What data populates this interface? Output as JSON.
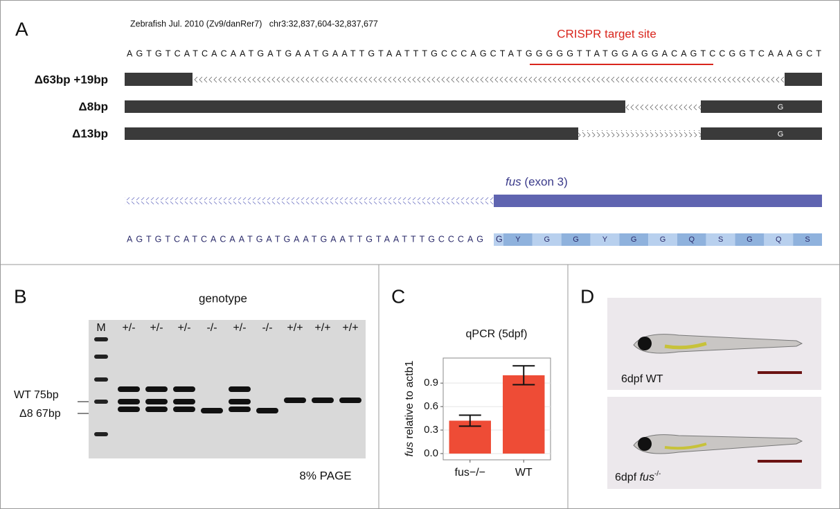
{
  "panel_a": {
    "label": "A",
    "genome": "Zebrafish Jul. 2010 (Zv9/danRer7)   chr3:32,837,604-32,837,677",
    "sequence": "AGTGTCATCACAATGATGAATGAATTGTAATTTGCCCAGCTATGGGGGTTATGGAGGACAGTCCGGTCAAAGCT",
    "target_label": "CRISPR target site",
    "alleles": [
      {
        "label": "Δ63bp +19bp"
      },
      {
        "label": "Δ8bp",
        "base": "G"
      },
      {
        "label": "Δ13bp",
        "base": "G"
      }
    ],
    "gene": "fus",
    "exon": "(exon 3)",
    "sequence2": "AGTGTCATCACAATGATGAATGAATTGTAATTTGCCCAG",
    "splice_base": "G",
    "amino_acids": [
      "Y",
      "G",
      "G",
      "Y",
      "G",
      "G",
      "Q",
      "S",
      "G",
      "Q",
      "S"
    ]
  },
  "panel_b": {
    "label": "B",
    "title": "genotype",
    "marker": "M",
    "lanes": [
      "+/-",
      "+/-",
      "+/-",
      "-/-",
      "+/-",
      "-/-",
      "+/+",
      "+/+",
      "+/+"
    ],
    "band_labels": [
      "WT 75bp",
      "Δ8 67bp"
    ],
    "gel": "8% PAGE"
  },
  "chart_data": {
    "type": "bar",
    "panel_label": "C",
    "title": "qPCR (5dpf)",
    "y_label": [
      "fus",
      "relative to actb1"
    ],
    "categories": [
      "fus−/−",
      "WT"
    ],
    "values": [
      0.42,
      1.0
    ],
    "errors": [
      0.07,
      0.12
    ],
    "color": "#ee4c36",
    "ylim": [
      -0.08,
      1.22
    ],
    "yticks": [
      {
        "value": 0,
        "label": "0.0"
      },
      0.3,
      0.6,
      0.9
    ],
    "grid": true
  },
  "panel_d": {
    "label": "D",
    "captions": [
      {
        "text": "6dpf WT"
      },
      {
        "text": "6dpf",
        "gene": "fus",
        "sup": "-/-"
      }
    ]
  }
}
